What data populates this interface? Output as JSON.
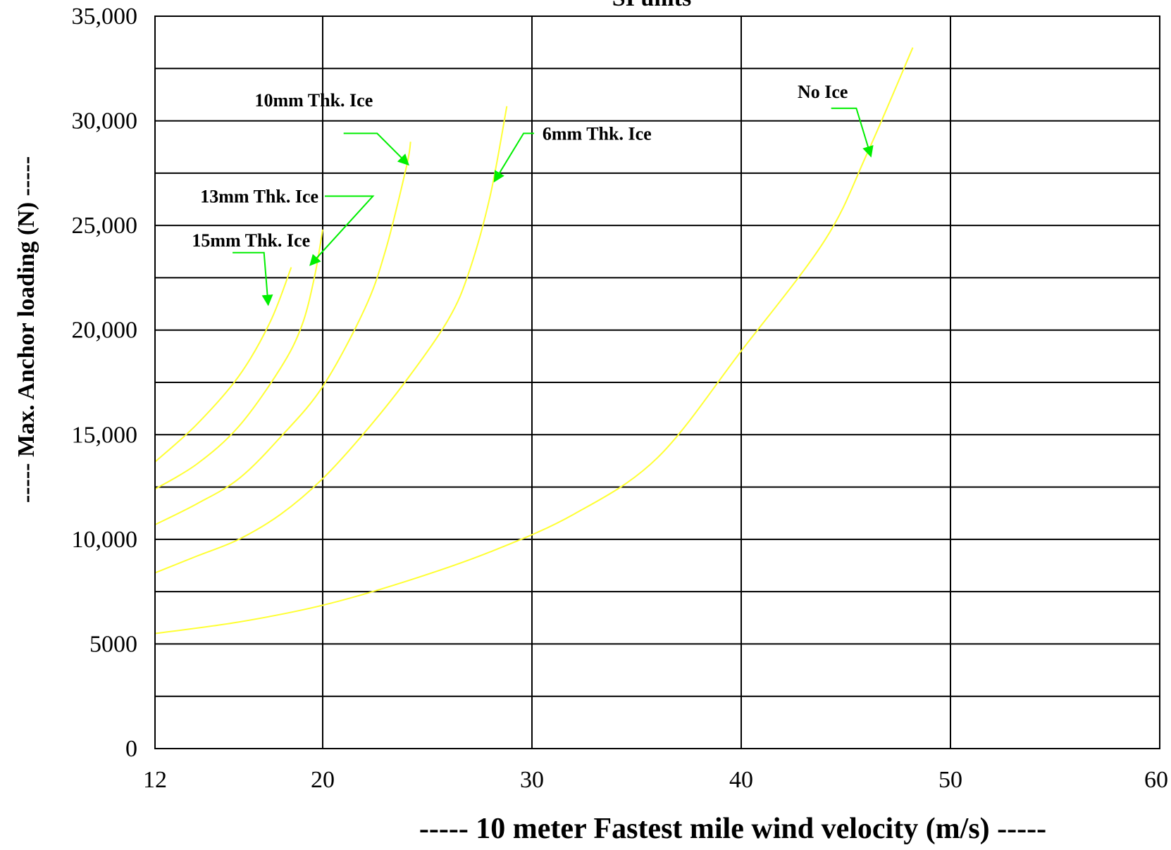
{
  "chart_data": {
    "type": "line",
    "title": "SI units",
    "xlabel": "----- 10 meter Fastest mile wind velocity (m/s) -----",
    "ylabel": "----- Max. Anchor loading (N) -----",
    "xlim": [
      12,
      60
    ],
    "ylim": [
      0,
      35000
    ],
    "x_ticks": [
      12,
      20,
      30,
      40,
      50,
      60
    ],
    "x_tick_labels": [
      "12",
      "20",
      "30",
      "40",
      "50",
      "60"
    ],
    "x_gridlines": [
      20,
      30,
      40,
      50,
      60
    ],
    "y_ticks": [
      0,
      5000,
      10000,
      15000,
      20000,
      25000,
      30000,
      35000
    ],
    "y_tick_labels": [
      "0",
      "5000",
      "10,000",
      "15,000",
      "20,000",
      "25,000",
      "30,000",
      "35,000"
    ],
    "y_gridlines": [
      2500,
      5000,
      7500,
      10000,
      12500,
      15000,
      17500,
      20000,
      22500,
      25000,
      27500,
      30000,
      32500,
      35000
    ],
    "grid": true,
    "line_color": "#ffff33",
    "leader_color": "#00ee00",
    "series": [
      {
        "name": "No Ice",
        "points": [
          [
            12,
            5500
          ],
          [
            16,
            6050
          ],
          [
            20,
            6850
          ],
          [
            24,
            8000
          ],
          [
            28,
            9400
          ],
          [
            32,
            11200
          ],
          [
            36,
            13900
          ],
          [
            40,
            19000
          ],
          [
            44,
            24300
          ],
          [
            46,
            28400
          ],
          [
            48.2,
            33500
          ]
        ]
      },
      {
        "name": "6mm Thk. Ice",
        "points": [
          [
            12,
            8400
          ],
          [
            14,
            9200
          ],
          [
            16,
            10000
          ],
          [
            18,
            11200
          ],
          [
            20,
            12900
          ],
          [
            22,
            15100
          ],
          [
            24,
            17600
          ],
          [
            26,
            20500
          ],
          [
            27,
            22800
          ],
          [
            28,
            26400
          ],
          [
            28.8,
            30700
          ]
        ]
      },
      {
        "name": "10mm Thk. Ice",
        "points": [
          [
            12,
            10700
          ],
          [
            14,
            11700
          ],
          [
            16,
            12900
          ],
          [
            18,
            14900
          ],
          [
            20,
            17300
          ],
          [
            22,
            21000
          ],
          [
            23,
            23800
          ],
          [
            24,
            27800
          ],
          [
            24.2,
            29000
          ]
        ]
      },
      {
        "name": "13mm Thk. Ice",
        "points": [
          [
            12,
            12400
          ],
          [
            14,
            13600
          ],
          [
            16,
            15400
          ],
          [
            18,
            18200
          ],
          [
            19,
            20200
          ],
          [
            19.6,
            22500
          ],
          [
            20,
            24800
          ]
        ]
      },
      {
        "name": "15mm Thk. Ice",
        "points": [
          [
            12,
            13700
          ],
          [
            14,
            15500
          ],
          [
            16,
            17800
          ],
          [
            17.5,
            20400
          ],
          [
            18.5,
            23000
          ]
        ]
      }
    ],
    "annotations": [
      {
        "text": "10mm Thk. Ice",
        "series": "10mm Thk. Ice",
        "label_at": [
          22.4,
          30700
        ],
        "anchor_end": true,
        "leader": [
          [
            21,
            29400
          ],
          [
            22.6,
            29400
          ],
          [
            24.1,
            27900
          ]
        ]
      },
      {
        "text": "6mm Thk. Ice",
        "series": "6mm Thk. Ice",
        "label_at": [
          30.5,
          29100
        ],
        "anchor_end": false,
        "leader": [
          [
            30.1,
            29400
          ],
          [
            29.6,
            29400
          ],
          [
            28.2,
            27100
          ]
        ]
      },
      {
        "text": "13mm Thk. Ice",
        "series": "13mm Thk. Ice",
        "label_at": [
          19.8,
          26100
        ],
        "anchor_end": true,
        "leader": [
          [
            20.1,
            26400
          ],
          [
            22.4,
            26400
          ],
          [
            19.4,
            23100
          ]
        ]
      },
      {
        "text": "15mm Thk. Ice",
        "series": "15mm Thk. Ice",
        "label_at": [
          19.4,
          24000
        ],
        "anchor_end": true,
        "leader": [
          [
            15.7,
            23700
          ],
          [
            17.2,
            23700
          ],
          [
            17.4,
            21200
          ]
        ]
      },
      {
        "text": "No Ice",
        "series": "No Ice",
        "label_at": [
          45.1,
          31100
        ],
        "anchor_end": true,
        "leader": [
          [
            44.3,
            30600
          ],
          [
            45.5,
            30600
          ],
          [
            46.2,
            28300
          ]
        ]
      }
    ]
  }
}
